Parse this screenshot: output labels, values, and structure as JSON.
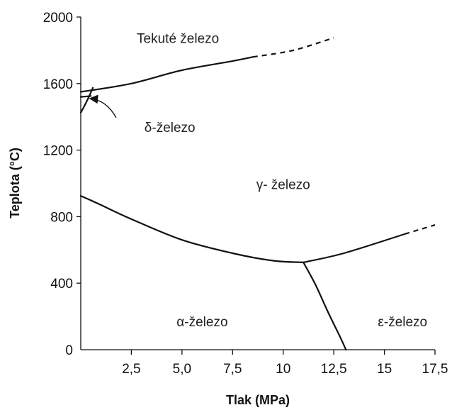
{
  "chart_data": {
    "type": "line",
    "title": "",
    "xlabel": "Tlak (MPa)",
    "ylabel": "Teplota (°C)",
    "xlim": [
      0,
      17.5
    ],
    "ylim": [
      0,
      2000
    ],
    "x_ticks": [
      {
        "value": 2.5,
        "label": "2,5"
      },
      {
        "value": 5.0,
        "label": "5,0"
      },
      {
        "value": 7.5,
        "label": "7,5"
      },
      {
        "value": 10,
        "label": "10"
      },
      {
        "value": 12.5,
        "label": "12,5"
      },
      {
        "value": 15,
        "label": "15"
      },
      {
        "value": 17.5,
        "label": "17,5"
      }
    ],
    "y_ticks": [
      {
        "value": 0,
        "label": "0"
      },
      {
        "value": 400,
        "label": "400"
      },
      {
        "value": 800,
        "label": "800"
      },
      {
        "value": 1200,
        "label": "1200"
      },
      {
        "value": 1600,
        "label": "1600"
      },
      {
        "value": 2000,
        "label": "2000"
      }
    ],
    "grid": false,
    "legend": "none",
    "series": [
      {
        "style": "solid",
        "points": [
          [
            0,
            1550
          ],
          [
            2.5,
            1600
          ],
          [
            5.0,
            1680
          ],
          [
            7.5,
            1735
          ],
          [
            8.5,
            1760
          ]
        ]
      },
      {
        "style": "dashed",
        "points": [
          [
            8.5,
            1760
          ],
          [
            10.5,
            1800
          ],
          [
            12.5,
            1875
          ]
        ]
      },
      {
        "style": "solid",
        "points": [
          [
            0,
            1520
          ],
          [
            0.5,
            1525
          ]
        ]
      },
      {
        "style": "solid",
        "points": [
          [
            0,
            1425
          ],
          [
            0.2,
            1470
          ],
          [
            0.4,
            1520
          ],
          [
            0.6,
            1575
          ]
        ]
      },
      {
        "style": "solid",
        "points": [
          [
            0,
            925
          ],
          [
            1.0,
            870
          ],
          [
            2.5,
            785
          ],
          [
            5.0,
            660
          ],
          [
            7.5,
            580
          ],
          [
            9.5,
            535
          ],
          [
            11.0,
            525
          ]
        ]
      },
      {
        "style": "solid",
        "points": [
          [
            11.0,
            525
          ],
          [
            13.0,
            580
          ],
          [
            16.0,
            695
          ]
        ]
      },
      {
        "style": "dashed",
        "points": [
          [
            16.0,
            695
          ],
          [
            17.5,
            750
          ]
        ]
      },
      {
        "style": "solid",
        "points": [
          [
            11.0,
            525
          ],
          [
            11.6,
            390
          ],
          [
            12.2,
            230
          ],
          [
            12.8,
            80
          ],
          [
            13.1,
            0
          ]
        ]
      }
    ],
    "annotations": [
      {
        "text": "Tekuté železo",
        "x": 4.8,
        "y": 1875
      },
      {
        "text": "δ-železo",
        "x": 4.4,
        "y": 1340
      },
      {
        "text": "γ- železo",
        "x": 10.0,
        "y": 995
      },
      {
        "text": "α-železo",
        "x": 6.0,
        "y": 170
      },
      {
        "text": "ε-železo",
        "x": 15.9,
        "y": 170
      }
    ],
    "pointer": {
      "from": [
        1.75,
        1395
      ],
      "to": [
        0.45,
        1510
      ]
    }
  }
}
